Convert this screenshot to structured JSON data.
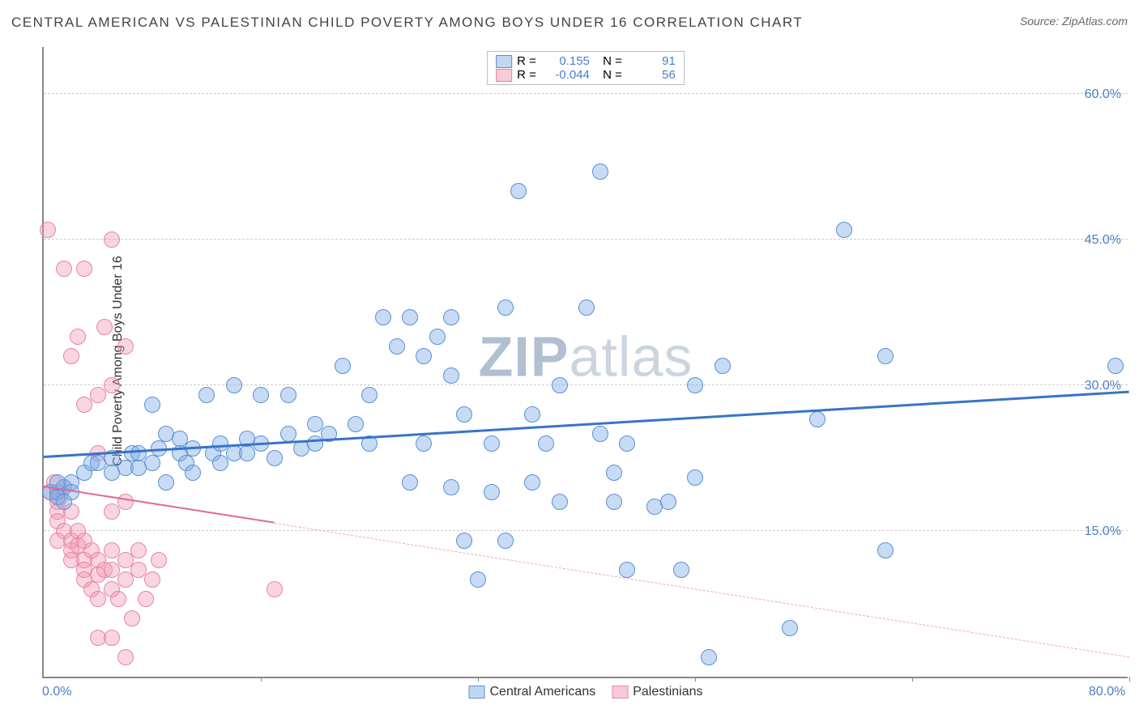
{
  "title": "CENTRAL AMERICAN VS PALESTINIAN CHILD POVERTY AMONG BOYS UNDER 16 CORRELATION CHART",
  "source_label": "Source:",
  "source_value": "ZipAtlas.com",
  "ylabel": "Child Poverty Among Boys Under 16",
  "watermark_part1": "ZIP",
  "watermark_part2": "atlas",
  "chart": {
    "type": "scatter",
    "xmin": 0,
    "xmax": 80,
    "ymin": 0,
    "ymax": 65,
    "y_gridlines": [
      15,
      30,
      45,
      60
    ],
    "y_ticklabels": [
      "15.0%",
      "30.0%",
      "45.0%",
      "60.0%"
    ],
    "x_gridlines": [
      16,
      32,
      48,
      64,
      80
    ],
    "x_ticklabels_shown": {
      "0": "0.0%",
      "80": "80.0%"
    },
    "grid_color": "#cccccc",
    "axis_color": "#888888",
    "background": "#ffffff",
    "tick_color": "#4a7ec9",
    "point_radius": 10,
    "series": {
      "blue": {
        "label": "Central Americans",
        "fill": "rgba(130,175,230,0.45)",
        "stroke": "#5b8fd6",
        "R_label": "R =",
        "R": "0.155",
        "N_label": "N =",
        "N": "91",
        "trend": {
          "x1": 0,
          "y1": 22.5,
          "x2": 80,
          "y2": 29.2,
          "color": "#3973c8",
          "dash_from_x": null
        },
        "points": [
          [
            0.5,
            19
          ],
          [
            1,
            19
          ],
          [
            1.5,
            19.5
          ],
          [
            1,
            18.5
          ],
          [
            2,
            20
          ],
          [
            2,
            19
          ],
          [
            1,
            20
          ],
          [
            1.5,
            18
          ],
          [
            3,
            21
          ],
          [
            3.5,
            22
          ],
          [
            4,
            22
          ],
          [
            5,
            22.5
          ],
          [
            5,
            21
          ],
          [
            6,
            21.5
          ],
          [
            6.5,
            23
          ],
          [
            7,
            23
          ],
          [
            7,
            21.5
          ],
          [
            8,
            22
          ],
          [
            8.5,
            23.5
          ],
          [
            9,
            20
          ],
          [
            9,
            25
          ],
          [
            10,
            23
          ],
          [
            10,
            24.5
          ],
          [
            10.5,
            22
          ],
          [
            11,
            23.5
          ],
          [
            11,
            21
          ],
          [
            12,
            29
          ],
          [
            12.5,
            23
          ],
          [
            13,
            22
          ],
          [
            13,
            24
          ],
          [
            14,
            23
          ],
          [
            14,
            30
          ],
          [
            15,
            23
          ],
          [
            15,
            24.5
          ],
          [
            16,
            24
          ],
          [
            16,
            29
          ],
          [
            17,
            22.5
          ],
          [
            18,
            25
          ],
          [
            18,
            29
          ],
          [
            19,
            23.5
          ],
          [
            20,
            24
          ],
          [
            20,
            26
          ],
          [
            21,
            25
          ],
          [
            22,
            32
          ],
          [
            23,
            26
          ],
          [
            24,
            24
          ],
          [
            24,
            29
          ],
          [
            25,
            37
          ],
          [
            26,
            34
          ],
          [
            27,
            20
          ],
          [
            27,
            37
          ],
          [
            28,
            33
          ],
          [
            28,
            24
          ],
          [
            29,
            35
          ],
          [
            30,
            19.5
          ],
          [
            30,
            37
          ],
          [
            30,
            31
          ],
          [
            31,
            14
          ],
          [
            31,
            27
          ],
          [
            32,
            10
          ],
          [
            33,
            19
          ],
          [
            33,
            24
          ],
          [
            34,
            14
          ],
          [
            34,
            38
          ],
          [
            35,
            50
          ],
          [
            36,
            27
          ],
          [
            36,
            20
          ],
          [
            37,
            24
          ],
          [
            38,
            18
          ],
          [
            38,
            30
          ],
          [
            40,
            38
          ],
          [
            41,
            25
          ],
          [
            41,
            52
          ],
          [
            42,
            18
          ],
          [
            42,
            21
          ],
          [
            43,
            24
          ],
          [
            43,
            11
          ],
          [
            45,
            17.5
          ],
          [
            46,
            18
          ],
          [
            47,
            11
          ],
          [
            48,
            30
          ],
          [
            48,
            20.5
          ],
          [
            49,
            2
          ],
          [
            50,
            32
          ],
          [
            55,
            5
          ],
          [
            57,
            26.5
          ],
          [
            59,
            46
          ],
          [
            62,
            13
          ],
          [
            62,
            33
          ],
          [
            79,
            32
          ],
          [
            8,
            28
          ]
        ]
      },
      "pink": {
        "label": "Palestinians",
        "fill": "rgba(240,150,175,0.40)",
        "stroke": "#e884a5",
        "R_label": "R =",
        "R": "-0.044",
        "N_label": "N =",
        "N": "56",
        "trend": {
          "x1": 0,
          "y1": 19.5,
          "x2": 80,
          "y2": 2,
          "color": "#e06a90",
          "dash_from_x": 17
        },
        "points": [
          [
            0.3,
            46
          ],
          [
            0.5,
            19
          ],
          [
            1,
            19
          ],
          [
            1,
            18
          ],
          [
            1.5,
            19.5
          ],
          [
            1,
            17
          ],
          [
            0.8,
            20
          ],
          [
            1.2,
            18.5
          ],
          [
            1,
            16
          ],
          [
            1.5,
            15
          ],
          [
            1,
            14
          ],
          [
            2,
            17
          ],
          [
            2,
            14
          ],
          [
            2,
            13
          ],
          [
            2.5,
            15
          ],
          [
            2,
            12
          ],
          [
            2.5,
            13.5
          ],
          [
            3,
            14
          ],
          [
            3,
            12
          ],
          [
            3,
            11
          ],
          [
            3.5,
            13
          ],
          [
            3,
            10
          ],
          [
            3.5,
            9
          ],
          [
            4,
            12
          ],
          [
            4,
            10.5
          ],
          [
            4,
            8
          ],
          [
            4.5,
            11
          ],
          [
            4,
            4
          ],
          [
            5,
            11
          ],
          [
            5,
            13
          ],
          [
            5,
            9
          ],
          [
            5.5,
            8
          ],
          [
            5,
            4
          ],
          [
            6,
            12
          ],
          [
            6,
            10
          ],
          [
            6.5,
            6
          ],
          [
            6,
            2
          ],
          [
            7,
            13
          ],
          [
            7,
            11
          ],
          [
            7.5,
            8
          ],
          [
            8,
            10
          ],
          [
            8.5,
            12
          ],
          [
            2,
            33
          ],
          [
            2.5,
            35
          ],
          [
            3,
            42
          ],
          [
            3,
            28
          ],
          [
            4,
            29
          ],
          [
            4.5,
            36
          ],
          [
            5,
            45
          ],
          [
            5,
            30
          ],
          [
            6,
            34
          ],
          [
            1.5,
            42
          ],
          [
            4,
            23
          ],
          [
            5,
            17
          ],
          [
            6,
            18
          ],
          [
            17,
            9
          ]
        ]
      }
    }
  }
}
